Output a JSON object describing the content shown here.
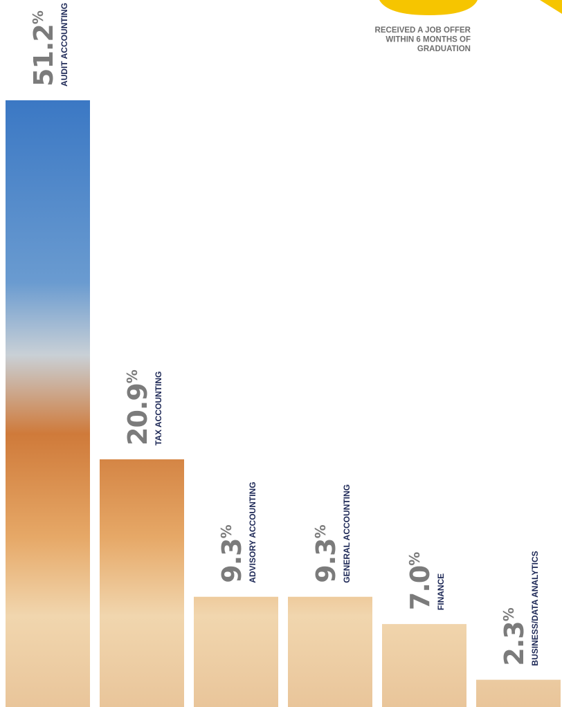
{
  "chart_data": {
    "type": "bar",
    "annotation_lines": [
      "RECEIVED A JOB OFFER",
      "WITHIN 6 MONTHS OF",
      "GRADUATION"
    ],
    "categories": [
      "AUDIT ACCOUNTING",
      "TAX ACCOUNTING",
      "ADVISORY ACCOUNTING",
      "GENERAL ACCOUNTING",
      "FINANCE",
      "BUSINESS/DATA ANALYTICS"
    ],
    "values": [
      51.2,
      20.9,
      9.3,
      9.3,
      7.0,
      2.3
    ],
    "value_labels": [
      "51.2",
      "20.9",
      "9.3",
      "9.3",
      "7.0",
      "2.3"
    ],
    "unit": "%"
  }
}
